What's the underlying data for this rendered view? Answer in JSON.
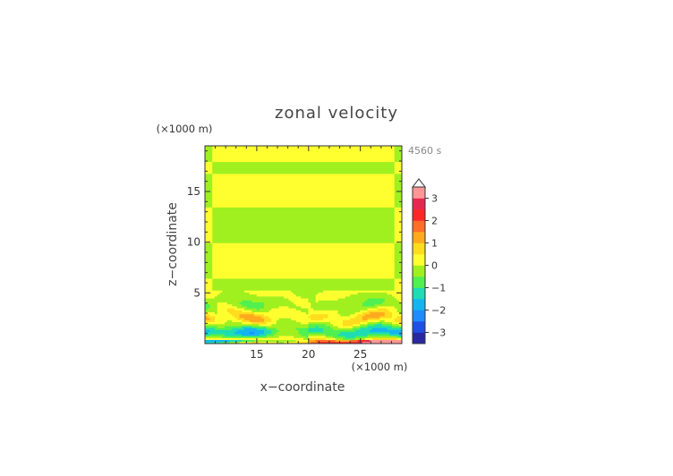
{
  "chart_data": {
    "type": "heatmap",
    "title": "zonal velocity",
    "xlabel": "x−coordinate",
    "ylabel": "z−coordinate",
    "x_unit": "(×1000 m)",
    "y_unit": "(×1000 m)",
    "time_label": "4560 s",
    "xlim": [
      10,
      29
    ],
    "ylim": [
      0,
      19.5
    ],
    "xticks": [
      15,
      20,
      25
    ],
    "yticks": [
      5,
      10,
      15
    ],
    "colorbar": {
      "levels": [
        -3.5,
        -3,
        -2.5,
        -2,
        -1.5,
        -1,
        -0.5,
        0,
        0.5,
        1,
        1.5,
        2,
        2.5,
        3,
        3.5
      ],
      "tick_values": [
        3,
        2,
        1,
        0,
        -1,
        -2,
        -3
      ],
      "tick_labels": [
        "3",
        "2",
        "1",
        "0",
        "−1",
        "−2",
        "−3"
      ],
      "colors": [
        "#2828a0",
        "#1e50e6",
        "#1e8cff",
        "#14b4f0",
        "#1edcb4",
        "#50f050",
        "#a0f020",
        "#ffff30",
        "#ffdc1e",
        "#ffaa1e",
        "#ff6e28",
        "#ff2828",
        "#e62850",
        "#ff9696"
      ],
      "extend_top": true
    },
    "field_description": {
      "bands": [
        {
          "z": [
            18.0,
            19.5
          ],
          "value": 0.4
        },
        {
          "z": [
            16.8,
            18.0
          ],
          "value": -0.3
        },
        {
          "z": [
            13.5,
            16.8
          ],
          "value": 0.3
        },
        {
          "z": [
            10.0,
            13.5
          ],
          "value": -0.2
        },
        {
          "z": [
            6.5,
            10.0
          ],
          "value": 0.3
        },
        {
          "z": [
            5.2,
            6.5
          ],
          "value": -0.2
        }
      ]
    }
  }
}
